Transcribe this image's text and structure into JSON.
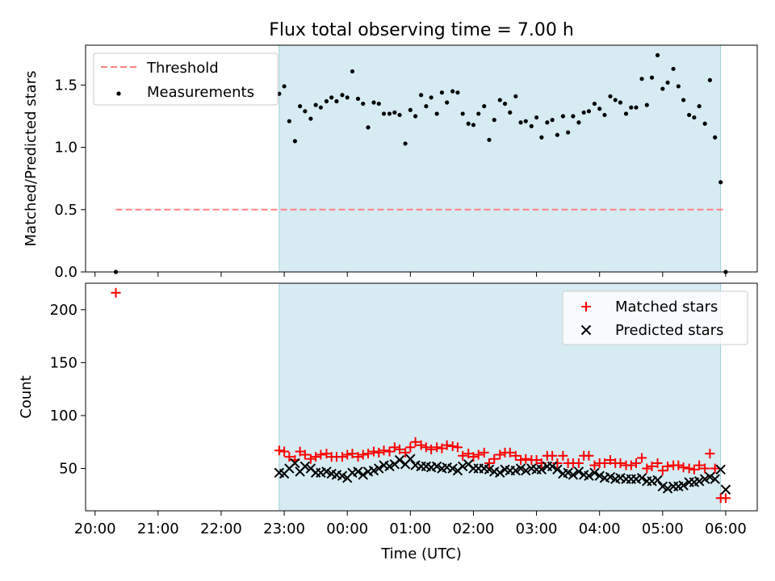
{
  "figure": {
    "title": "Flux total observing time = 7.00 h",
    "xlabel": "Time (UTC)",
    "xticks": [
      "20:00",
      "21:00",
      "22:00",
      "23:00",
      "00:00",
      "01:00",
      "02:00",
      "03:00",
      "04:00",
      "05:00",
      "06:00"
    ]
  },
  "colors": {
    "shade": "#add8e6",
    "threshold": "#ff8080",
    "matched": "#ff0000",
    "predicted": "#000000",
    "measurements": "#000000"
  },
  "chart_data": [
    {
      "type": "scatter",
      "panel": "top",
      "ylabel": "Matched/Predicted stars",
      "xlim_hours": [
        19.85,
        30.5
      ],
      "ylim": [
        0,
        1.82
      ],
      "yticks": [
        "0.0",
        "0.5",
        "1.0",
        "1.5"
      ],
      "yticks_values": [
        0,
        0.5,
        1.0,
        1.5
      ],
      "shaded_interval_hours": [
        22.92,
        29.92
      ],
      "legend_position": "upper-left",
      "legend": {
        "threshold": "Threshold",
        "measurements": "Measurements"
      },
      "threshold": {
        "value": 0.5,
        "x_hours": [
          20.33,
          30.0
        ]
      },
      "series": [
        {
          "name": "Measurements",
          "x_hours": [
            20.33,
            22.92,
            23.0,
            23.08,
            23.17,
            23.25,
            23.33,
            23.42,
            23.5,
            23.58,
            23.67,
            23.75,
            23.83,
            23.92,
            24.0,
            24.08,
            24.17,
            24.25,
            24.33,
            24.42,
            24.5,
            24.58,
            24.67,
            24.75,
            24.83,
            24.92,
            25.0,
            25.08,
            25.17,
            25.25,
            25.33,
            25.42,
            25.5,
            25.58,
            25.67,
            25.75,
            25.83,
            25.92,
            26.0,
            26.08,
            26.17,
            26.25,
            26.33,
            26.42,
            26.5,
            26.58,
            26.67,
            26.75,
            26.83,
            26.92,
            27.0,
            27.08,
            27.17,
            27.25,
            27.33,
            27.42,
            27.5,
            27.58,
            27.67,
            27.75,
            27.83,
            27.92,
            28.0,
            28.08,
            28.17,
            28.25,
            28.33,
            28.42,
            28.5,
            28.58,
            28.67,
            28.75,
            28.83,
            28.92,
            29.0,
            29.08,
            29.17,
            29.25,
            29.33,
            29.42,
            29.5,
            29.58,
            29.67,
            29.75,
            29.83,
            29.92,
            30.0
          ],
          "values": [
            0.0,
            1.43,
            1.49,
            1.21,
            1.05,
            1.33,
            1.29,
            1.23,
            1.34,
            1.32,
            1.37,
            1.4,
            1.37,
            1.42,
            1.4,
            1.61,
            1.39,
            1.35,
            1.16,
            1.36,
            1.35,
            1.27,
            1.27,
            1.28,
            1.26,
            1.03,
            1.3,
            1.25,
            1.42,
            1.33,
            1.4,
            1.27,
            1.44,
            1.36,
            1.45,
            1.44,
            1.27,
            1.19,
            1.18,
            1.27,
            1.33,
            1.06,
            1.22,
            1.38,
            1.35,
            1.28,
            1.41,
            1.2,
            1.21,
            1.17,
            1.24,
            1.08,
            1.2,
            1.22,
            1.1,
            1.25,
            1.12,
            1.25,
            1.2,
            1.28,
            1.29,
            1.35,
            1.31,
            1.26,
            1.41,
            1.38,
            1.36,
            1.27,
            1.32,
            1.32,
            1.55,
            1.34,
            1.56,
            1.74,
            1.47,
            1.52,
            1.63,
            1.49,
            1.38,
            1.26,
            1.24,
            1.33,
            1.19,
            1.54,
            1.08,
            0.72,
            0.0
          ]
        }
      ]
    },
    {
      "type": "scatter",
      "panel": "bottom",
      "ylabel": "Count",
      "xlabel": "Time (UTC)",
      "xlim_hours": [
        19.85,
        30.5
      ],
      "ylim": [
        10,
        225
      ],
      "yticks": [
        "50",
        "100",
        "150",
        "200"
      ],
      "yticks_values": [
        50,
        100,
        150,
        200
      ],
      "shaded_interval_hours": [
        22.92,
        29.92
      ],
      "legend_position": "upper-right",
      "series": [
        {
          "name": "Matched stars",
          "marker": "plus",
          "x_hours": [
            20.33,
            22.92,
            23.0,
            23.08,
            23.17,
            23.25,
            23.33,
            23.42,
            23.5,
            23.58,
            23.67,
            23.75,
            23.83,
            23.92,
            24.0,
            24.08,
            24.17,
            24.25,
            24.33,
            24.42,
            24.5,
            24.58,
            24.67,
            24.75,
            24.83,
            24.92,
            25.0,
            25.08,
            25.17,
            25.25,
            25.33,
            25.42,
            25.5,
            25.58,
            25.67,
            25.75,
            25.83,
            25.92,
            26.0,
            26.08,
            26.17,
            26.25,
            26.33,
            26.42,
            26.5,
            26.58,
            26.67,
            26.75,
            26.83,
            26.92,
            27.0,
            27.08,
            27.17,
            27.25,
            27.33,
            27.42,
            27.5,
            27.58,
            27.67,
            27.75,
            27.83,
            27.92,
            28.0,
            28.08,
            28.17,
            28.25,
            28.33,
            28.42,
            28.5,
            28.58,
            28.67,
            28.75,
            28.83,
            28.92,
            29.0,
            29.08,
            29.17,
            29.25,
            29.33,
            29.42,
            29.5,
            29.58,
            29.67,
            29.75,
            29.83,
            29.92,
            30.0
          ],
          "values": [
            216,
            67,
            66,
            61,
            58,
            66,
            63,
            59,
            61,
            63,
            64,
            61,
            61,
            61,
            63,
            64,
            61,
            63,
            64,
            66,
            65,
            67,
            66,
            70,
            68,
            65,
            70,
            75,
            72,
            70,
            68,
            70,
            69,
            72,
            71,
            70,
            62,
            64,
            61,
            63,
            65,
            55,
            59,
            63,
            65,
            65,
            62,
            58,
            59,
            58,
            58,
            55,
            62,
            62,
            55,
            62,
            55,
            55,
            55,
            62,
            62,
            53,
            55,
            55,
            58,
            55,
            55,
            53,
            53,
            55,
            60,
            50,
            52,
            55,
            48,
            52,
            53,
            53,
            51,
            50,
            49,
            53,
            50,
            64,
            50,
            22,
            22
          ]
        },
        {
          "name": "Predicted stars",
          "marker": "x",
          "x_hours": [
            22.92,
            23.0,
            23.08,
            23.17,
            23.25,
            23.33,
            23.42,
            23.5,
            23.58,
            23.67,
            23.75,
            23.83,
            23.92,
            24.0,
            24.08,
            24.17,
            24.25,
            24.33,
            24.42,
            24.5,
            24.58,
            24.67,
            24.75,
            24.83,
            24.92,
            25.0,
            25.08,
            25.17,
            25.25,
            25.33,
            25.42,
            25.5,
            25.58,
            25.67,
            25.75,
            25.83,
            25.92,
            26.0,
            26.08,
            26.17,
            26.25,
            26.33,
            26.42,
            26.5,
            26.58,
            26.67,
            26.75,
            26.83,
            26.92,
            27.0,
            27.08,
            27.17,
            27.25,
            27.33,
            27.42,
            27.5,
            27.58,
            27.67,
            27.75,
            27.83,
            27.92,
            28.0,
            28.08,
            28.17,
            28.25,
            28.33,
            28.42,
            28.5,
            28.58,
            28.67,
            28.75,
            28.83,
            28.92,
            29.0,
            29.08,
            29.17,
            29.25,
            29.33,
            29.42,
            29.5,
            29.58,
            29.67,
            29.75,
            29.83,
            29.92,
            30.0
          ],
          "values": [
            46,
            45,
            50,
            55,
            47,
            52,
            50,
            46,
            46,
            47,
            45,
            44,
            43,
            41,
            46,
            47,
            44,
            47,
            48,
            50,
            53,
            52,
            54,
            58,
            54,
            59,
            53,
            52,
            52,
            51,
            52,
            50,
            51,
            50,
            48,
            52,
            54,
            50,
            50,
            50,
            49,
            47,
            46,
            49,
            48,
            48,
            50,
            48,
            50,
            49,
            49,
            52,
            52,
            49,
            45,
            46,
            44,
            47,
            44,
            43,
            46,
            43,
            41,
            42,
            40,
            41,
            40,
            40,
            40,
            41,
            38,
            38,
            39,
            33,
            31,
            33,
            33,
            34,
            37,
            37,
            38,
            40,
            42,
            40,
            49,
            30
          ]
        }
      ]
    }
  ]
}
